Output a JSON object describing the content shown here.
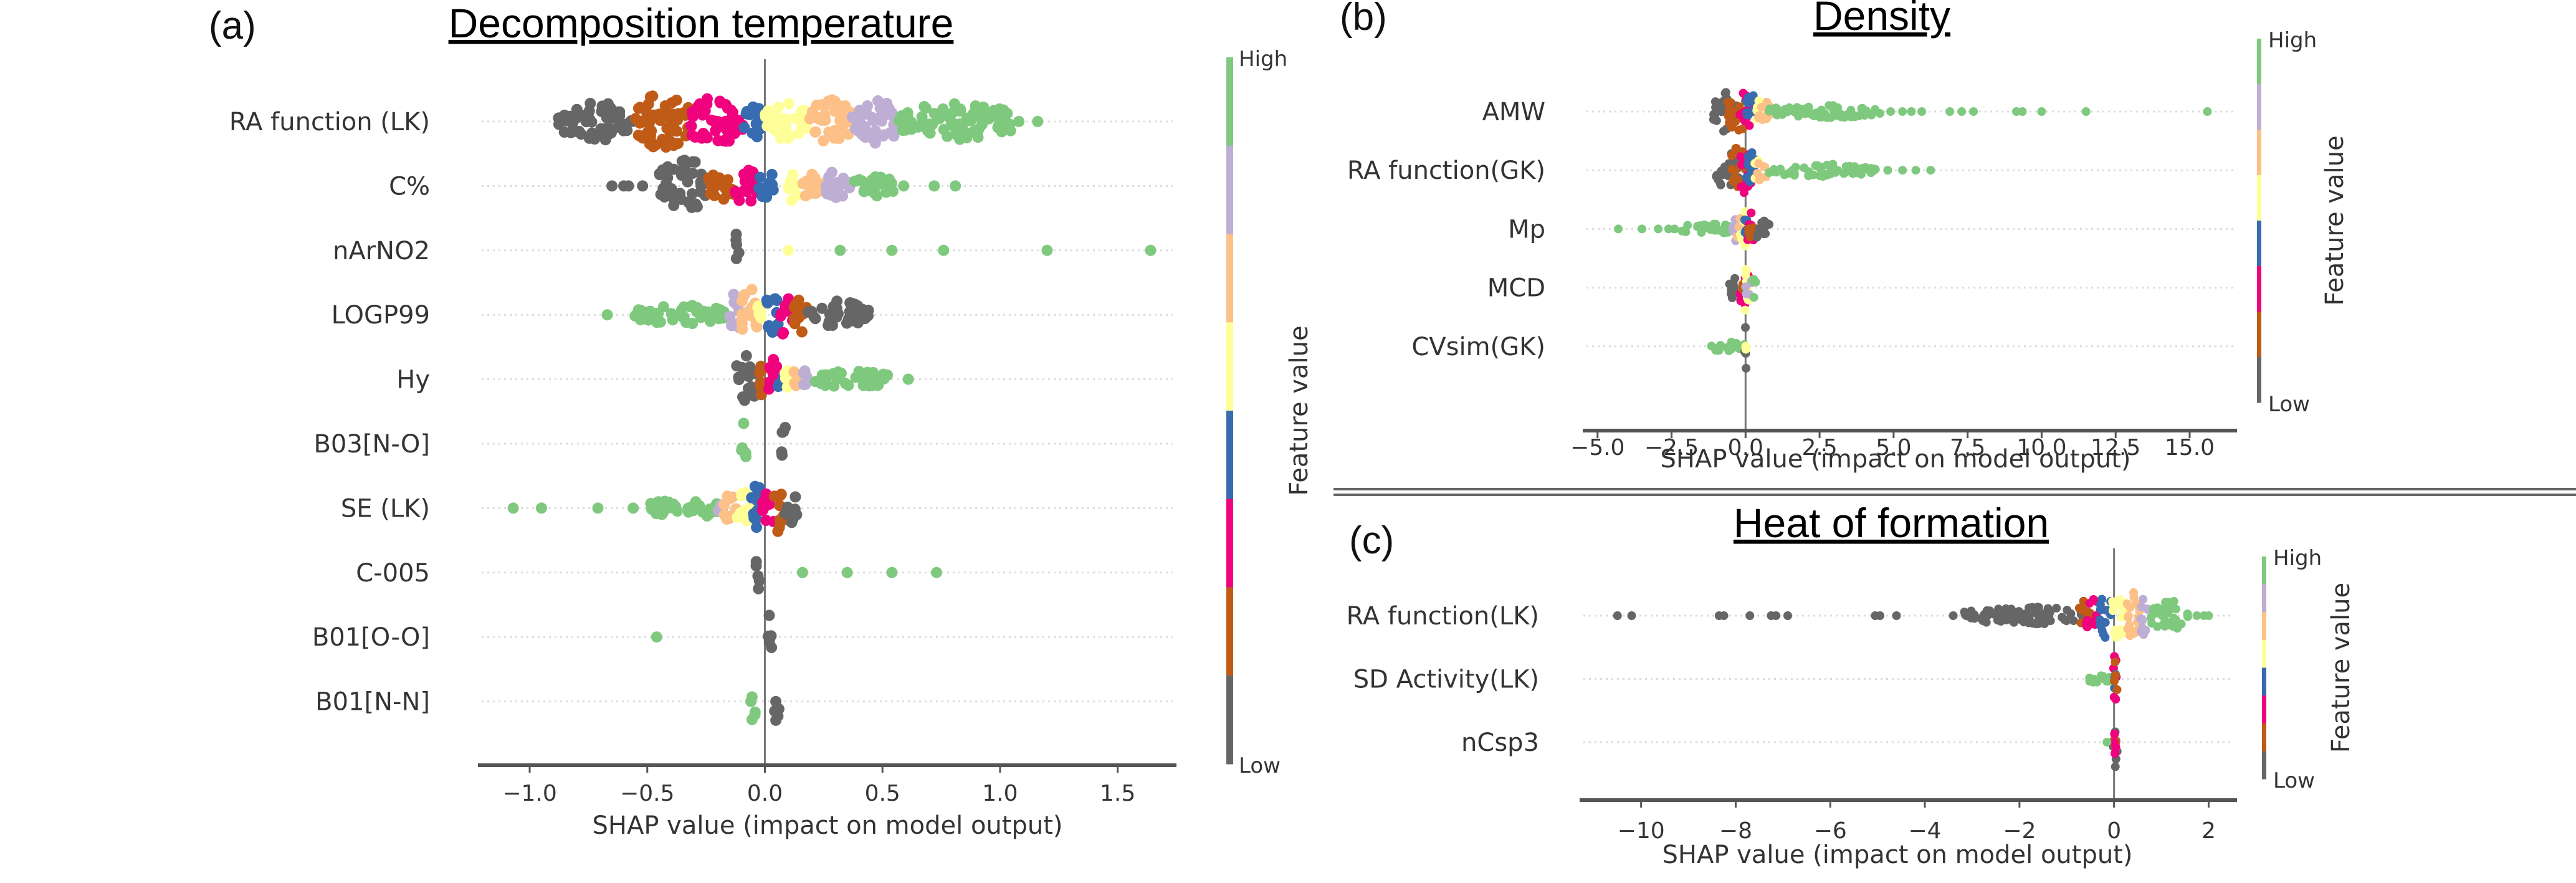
{
  "figure": {
    "divider": "double-rule",
    "colormap": [
      "#666666",
      "#bf5b17",
      "#f0027f",
      "#386cb0",
      "#ffff99",
      "#fdc086",
      "#beaed4",
      "#7fc97f"
    ]
  },
  "chart_data": [
    {
      "id": "a",
      "type": "scatter",
      "subtype": "shap-beeswarm",
      "panel_letter": "(a)",
      "title": "Decomposition temperature",
      "xlabel": "SHAP value (impact on model output)",
      "ylabel": "",
      "xlim": [
        -1.22,
        1.75
      ],
      "xticks": [
        -1.0,
        -0.5,
        0.0,
        0.5,
        1.0,
        1.5
      ],
      "xtick_labels": [
        "−1.0",
        "−0.5",
        "0.0",
        "0.5",
        "1.0",
        "1.5"
      ],
      "grid": false,
      "colorbar": {
        "title": "Feature value",
        "high_label": "High",
        "low_label": "Low",
        "bins": 8
      },
      "features": [
        {
          "name": "RA function (LK)",
          "segments": [
            [
              0,
              -0.88,
              -0.56,
              0.7
            ],
            [
              1,
              -0.56,
              -0.32,
              1.0
            ],
            [
              2,
              -0.32,
              -0.09,
              0.9
            ],
            [
              3,
              -0.09,
              0.0,
              0.6
            ],
            [
              4,
              0.0,
              0.19,
              0.7
            ],
            [
              5,
              0.19,
              0.37,
              0.8
            ],
            [
              6,
              0.37,
              0.57,
              0.8
            ],
            [
              7,
              0.57,
              1.05,
              0.7
            ]
          ],
          "points": [
            [
              7,
              1.08
            ],
            [
              7,
              1.16
            ]
          ]
        },
        {
          "name": "C%",
          "segments": [
            [
              0,
              -0.45,
              -0.24,
              1.0
            ],
            [
              1,
              -0.24,
              -0.13,
              0.6
            ],
            [
              2,
              -0.13,
              -0.03,
              0.7
            ],
            [
              3,
              -0.03,
              0.06,
              0.5
            ],
            [
              4,
              0.1,
              0.14,
              0.8
            ],
            [
              5,
              0.15,
              0.26,
              0.5
            ],
            [
              6,
              0.26,
              0.37,
              0.6
            ],
            [
              7,
              0.37,
              0.55,
              0.4
            ]
          ],
          "points": [
            [
              0,
              -0.65
            ],
            [
              0,
              -0.6
            ],
            [
              0,
              -0.58
            ],
            [
              0,
              -0.52
            ],
            [
              7,
              0.59
            ],
            [
              7,
              0.72
            ],
            [
              7,
              0.81
            ]
          ]
        },
        {
          "name": "nArNO2",
          "segments": [
            [
              0,
              -0.13,
              -0.11,
              1.0
            ]
          ],
          "points": [
            [
              4,
              0.1
            ],
            [
              7,
              0.32
            ],
            [
              7,
              0.54
            ],
            [
              7,
              0.76
            ],
            [
              7,
              1.2
            ],
            [
              7,
              1.64
            ]
          ]
        },
        {
          "name": "LOGP99",
          "segments": [
            [
              7,
              -0.56,
              -0.16,
              0.35
            ],
            [
              6,
              -0.16,
              -0.1,
              0.8
            ],
            [
              5,
              -0.1,
              -0.03,
              1.0
            ],
            [
              4,
              -0.03,
              0.0,
              0.8
            ],
            [
              3,
              0.0,
              0.06,
              0.8
            ],
            [
              2,
              0.06,
              0.12,
              0.8
            ],
            [
              1,
              0.12,
              0.18,
              0.7
            ],
            [
              0,
              0.18,
              0.44,
              0.5
            ]
          ],
          "points": [
            [
              7,
              -0.67
            ]
          ]
        },
        {
          "name": "Hy",
          "segments": [
            [
              0,
              -0.12,
              -0.03,
              1.0
            ],
            [
              1,
              -0.03,
              0.01,
              0.7
            ],
            [
              2,
              0.01,
              0.05,
              0.9
            ],
            [
              3,
              0.05,
              0.08,
              0.5
            ],
            [
              4,
              0.08,
              0.12,
              0.4
            ],
            [
              5,
              0.12,
              0.16,
              0.4
            ],
            [
              6,
              0.16,
              0.2,
              0.4
            ],
            [
              7,
              0.2,
              0.54,
              0.3
            ]
          ],
          "points": [
            [
              7,
              0.61
            ]
          ]
        },
        {
          "name": "B03[N-O]",
          "segments": [
            [
              7,
              -0.1,
              -0.08,
              1.0
            ],
            [
              0,
              0.07,
              0.09,
              1.0
            ]
          ],
          "points": []
        },
        {
          "name": "SE (LK)",
          "segments": [
            [
              7,
              -0.5,
              -0.36,
              0.25
            ],
            [
              7,
              -0.33,
              -0.2,
              0.35
            ],
            [
              6,
              -0.2,
              -0.18,
              0.3
            ],
            [
              5,
              -0.18,
              -0.12,
              0.5
            ],
            [
              4,
              -0.12,
              -0.06,
              0.6
            ],
            [
              3,
              -0.06,
              -0.01,
              0.9
            ],
            [
              2,
              -0.01,
              0.04,
              0.9
            ],
            [
              1,
              0.04,
              0.08,
              1.0
            ],
            [
              0,
              0.08,
              0.14,
              0.6
            ]
          ],
          "points": [
            [
              7,
              -1.07
            ],
            [
              7,
              -0.95
            ],
            [
              7,
              -0.71
            ],
            [
              7,
              -0.56
            ]
          ]
        },
        {
          "name": "C-005",
          "segments": [
            [
              0,
              -0.04,
              -0.02,
              1.0
            ]
          ],
          "points": [
            [
              7,
              0.16
            ],
            [
              7,
              0.35
            ],
            [
              7,
              0.54
            ],
            [
              7,
              0.73
            ]
          ]
        },
        {
          "name": "B01[O-O]",
          "segments": [
            [
              0,
              0.01,
              0.03,
              1.0
            ]
          ],
          "points": [
            [
              7,
              -0.46
            ]
          ]
        },
        {
          "name": "B01[N-N]",
          "segments": [
            [
              7,
              -0.06,
              -0.04,
              1.0
            ],
            [
              0,
              0.04,
              0.06,
              1.0
            ]
          ],
          "points": []
        }
      ]
    },
    {
      "id": "b",
      "type": "scatter",
      "subtype": "shap-beeswarm",
      "panel_letter": "(b)",
      "title": "Density",
      "xlabel": "SHAP value (impact on model output)",
      "ylabel": "",
      "xlim": [
        -5.5,
        16.6
      ],
      "xticks": [
        -5.0,
        -2.5,
        0.0,
        2.5,
        5.0,
        7.5,
        10.0,
        12.5,
        15.0
      ],
      "xtick_labels": [
        "−5.0",
        "−2.5",
        "0.0",
        "2.5",
        "5.0",
        "7.5",
        "10.0",
        "12.5",
        "15.0"
      ],
      "grid": false,
      "colorbar": {
        "title": "Feature value",
        "high_label": "High",
        "low_label": "Low",
        "bins": 8
      },
      "features": [
        {
          "name": "AMW",
          "segments": [
            [
              0,
              -1.1,
              -0.3,
              0.8
            ],
            [
              1,
              -0.6,
              0.0,
              1.0
            ],
            [
              2,
              -0.2,
              0.2,
              1.0
            ],
            [
              3,
              0.0,
              0.35,
              0.8
            ],
            [
              4,
              0.3,
              0.5,
              0.6
            ],
            [
              5,
              0.4,
              0.8,
              0.5
            ],
            [
              7,
              0.8,
              4.6,
              0.25
            ]
          ],
          "points": [
            [
              7,
              4.9
            ],
            [
              7,
              5.3
            ],
            [
              7,
              5.6
            ],
            [
              7,
              5.95
            ],
            [
              7,
              6.9
            ],
            [
              7,
              7.3
            ],
            [
              7,
              7.7
            ],
            [
              7,
              9.15
            ],
            [
              7,
              9.35
            ],
            [
              7,
              10.0
            ],
            [
              7,
              11.5
            ],
            [
              7,
              15.6
            ]
          ]
        },
        {
          "name": "RA function(GK)",
          "segments": [
            [
              0,
              -1.0,
              -0.2,
              0.8
            ],
            [
              1,
              -0.5,
              0.0,
              1.0
            ],
            [
              2,
              -0.2,
              0.2,
              1.0
            ],
            [
              3,
              0.0,
              0.35,
              0.8
            ],
            [
              4,
              0.3,
              0.45,
              0.6
            ],
            [
              5,
              0.4,
              0.7,
              0.5
            ],
            [
              7,
              0.7,
              4.4,
              0.25
            ]
          ],
          "points": [
            [
              7,
              4.8
            ],
            [
              7,
              5.3
            ],
            [
              7,
              5.75
            ],
            [
              7,
              6.25
            ]
          ]
        },
        {
          "name": "Mp",
          "segments": [
            [
              7,
              -2.2,
              -0.4,
              0.25
            ],
            [
              6,
              -0.45,
              -0.2,
              0.5
            ],
            [
              5,
              -0.3,
              0.0,
              0.7
            ],
            [
              4,
              -0.2,
              0.1,
              0.9
            ],
            [
              3,
              -0.05,
              0.2,
              0.8
            ],
            [
              2,
              0.0,
              0.3,
              0.7
            ],
            [
              1,
              0.1,
              0.35,
              0.6
            ],
            [
              0,
              0.2,
              0.8,
              0.4
            ]
          ],
          "points": [
            [
              7,
              -4.3
            ],
            [
              7,
              -3.5
            ],
            [
              7,
              -2.95
            ],
            [
              7,
              -2.6
            ],
            [
              7,
              -2.4
            ]
          ]
        },
        {
          "name": "MCD",
          "segments": [
            [
              0,
              -0.55,
              -0.2,
              0.6
            ],
            [
              2,
              -0.2,
              0.1,
              0.9
            ],
            [
              1,
              -0.1,
              0.05,
              0.5
            ],
            [
              4,
              -0.1,
              0.1,
              1.0
            ],
            [
              6,
              0.0,
              0.2,
              0.5
            ],
            [
              7,
              0.2,
              0.35,
              0.5
            ]
          ],
          "points": []
        },
        {
          "name": "CVsim(GK)",
          "segments": [
            [
              7,
              -1.25,
              -0.05,
              0.2
            ],
            [
              0,
              -0.05,
              0.05,
              1.0
            ],
            [
              4,
              -0.02,
              0.02,
              0.15
            ]
          ],
          "points": []
        }
      ]
    },
    {
      "id": "c",
      "type": "scatter",
      "subtype": "shap-beeswarm",
      "panel_letter": "(c)",
      "title": "Heat of formation",
      "xlabel": "SHAP value (impact on model output)",
      "ylabel": "",
      "xlim": [
        -11.3,
        2.6
      ],
      "xticks": [
        -10,
        -8,
        -6,
        -4,
        -2,
        0,
        2
      ],
      "xtick_labels": [
        "−10",
        "−8",
        "−6",
        "−4",
        "−2",
        "0",
        "2"
      ],
      "grid": false,
      "colorbar": {
        "title": "Feature value",
        "high_label": "High",
        "low_label": "Low",
        "bins": 8
      },
      "features": [
        {
          "name": "RA function(LK)",
          "segments": [
            [
              0,
              -3.2,
              -0.5,
              0.35
            ],
            [
              1,
              -0.8,
              -0.5,
              0.6
            ],
            [
              2,
              -0.6,
              -0.25,
              0.8
            ],
            [
              3,
              -0.3,
              -0.05,
              1.0
            ],
            [
              4,
              -0.05,
              0.25,
              1.0
            ],
            [
              5,
              0.25,
              0.55,
              1.0
            ],
            [
              6,
              0.55,
              0.75,
              1.0
            ],
            [
              7,
              0.75,
              1.6,
              0.6
            ]
          ],
          "points": [
            [
              0,
              -10.5
            ],
            [
              0,
              -10.2
            ],
            [
              0,
              -8.35
            ],
            [
              0,
              -8.25
            ],
            [
              0,
              -7.7
            ],
            [
              0,
              -7.25
            ],
            [
              0,
              -7.15
            ],
            [
              0,
              -6.9
            ],
            [
              0,
              -5.05
            ],
            [
              0,
              -4.95
            ],
            [
              0,
              -4.6
            ],
            [
              0,
              -3.4
            ],
            [
              7,
              1.75
            ],
            [
              7,
              1.9
            ],
            [
              7,
              2.0
            ]
          ]
        },
        {
          "name": "SD Activity(LK)",
          "segments": [
            [
              7,
              -0.55,
              -0.1,
              0.2
            ],
            [
              2,
              -0.03,
              0.07,
              1.0
            ],
            [
              3,
              0.0,
              0.06,
              0.6
            ],
            [
              1,
              0.0,
              0.07,
              0.8
            ]
          ],
          "points": []
        },
        {
          "name": "nCsp3",
          "segments": [
            [
              0,
              -0.02,
              0.07,
              1.0
            ],
            [
              1,
              0.0,
              0.05,
              0.5
            ],
            [
              2,
              0.0,
              0.06,
              0.6
            ]
          ],
          "points": [
            [
              7,
              -0.15
            ]
          ]
        }
      ]
    }
  ]
}
